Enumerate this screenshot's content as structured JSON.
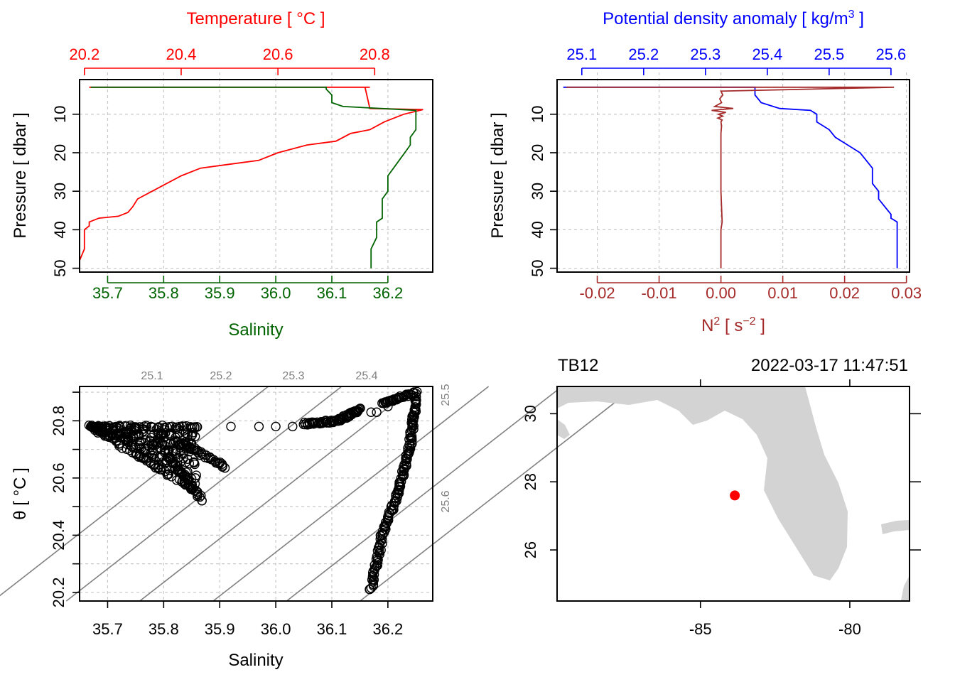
{
  "colors": {
    "temperature": "#ff0000",
    "salinity": "#006400",
    "density": "#0000ff",
    "n2": "#a52a2a",
    "isopycnal": "#808080",
    "land": "#d3d3d3",
    "station": "#ff0000"
  },
  "chart_data": [
    {
      "type": "line",
      "panel": "profile-TS",
      "title": "",
      "top_axis": {
        "label": "Temperature [ °C ]",
        "ticks": [
          "20.2",
          "20.4",
          "20.6",
          "20.8"
        ],
        "range": [
          20.19,
          20.92
        ]
      },
      "bottom_axis": {
        "label": "Salinity",
        "ticks": [
          "35.7",
          "35.8",
          "35.9",
          "36.0",
          "36.1",
          "36.2"
        ],
        "range": [
          35.65,
          36.28
        ]
      },
      "y_axis": {
        "label": "Pressure [ dbar ]",
        "ticks": [
          "10",
          "20",
          "30",
          "40",
          "50"
        ],
        "range": [
          1,
          51
        ],
        "reversed": true
      },
      "grid": true,
      "series": [
        {
          "name": "Temperature",
          "axis": "top",
          "pressure": [
            3,
            3,
            3,
            3,
            3,
            3,
            3,
            3,
            3,
            3,
            8.5,
            8.8,
            10,
            12,
            14,
            15,
            17,
            18,
            20,
            22,
            23,
            24,
            26,
            28,
            30,
            32,
            34,
            35.5,
            36.5,
            37,
            38,
            39,
            40,
            42,
            45,
            48,
            50
          ],
          "values": [
            20.21,
            20.34,
            20.5,
            20.6,
            20.7,
            20.75,
            20.78,
            20.79,
            20.78,
            20.78,
            20.79,
            20.9,
            20.86,
            20.82,
            20.79,
            20.75,
            20.72,
            20.66,
            20.6,
            20.56,
            20.5,
            20.44,
            20.4,
            20.37,
            20.34,
            20.31,
            20.3,
            20.29,
            20.27,
            20.23,
            20.21,
            20.21,
            20.2,
            20.2,
            20.2,
            20.19,
            20.19
          ]
        },
        {
          "name": "Salinity",
          "axis": "bottom",
          "pressure": [
            3,
            3,
            3,
            3,
            3,
            3.5,
            5,
            7,
            8,
            8.6,
            9,
            10,
            12,
            14,
            16,
            18,
            20,
            22,
            24,
            26,
            28,
            30,
            32,
            34,
            36,
            37,
            38,
            39,
            40,
            42,
            45,
            48,
            50
          ],
          "values": [
            35.67,
            35.9,
            36.0,
            36.08,
            36.09,
            36.09,
            36.1,
            36.1,
            36.12,
            36.2,
            36.25,
            36.25,
            36.25,
            36.25,
            36.24,
            36.24,
            36.23,
            36.22,
            36.21,
            36.2,
            36.2,
            36.2,
            36.19,
            36.19,
            36.19,
            36.19,
            36.18,
            36.18,
            36.18,
            36.18,
            36.17,
            36.17,
            36.17
          ]
        }
      ]
    },
    {
      "type": "line",
      "panel": "profile-density-N2",
      "title": "",
      "top_axis": {
        "label": "Potential density anomaly [ kg/m³ ]",
        "ticks": [
          "25.1",
          "25.2",
          "25.3",
          "25.4",
          "25.5",
          "25.6"
        ],
        "range": [
          25.06,
          25.63
        ]
      },
      "bottom_axis": {
        "label": "N² [ s⁻² ]",
        "ticks": [
          "-0.02",
          "-0.01",
          "0.00",
          "0.01",
          "0.02",
          "0.03"
        ],
        "range": [
          -0.0265,
          0.0305
        ]
      },
      "y_axis": {
        "label": "Pressure [ dbar ]",
        "ticks": [
          "10",
          "20",
          "30",
          "40",
          "50"
        ],
        "range": [
          1,
          51
        ],
        "reversed": true
      },
      "grid": true,
      "series": [
        {
          "name": "Potential density anomaly",
          "axis": "top",
          "pressure": [
            3,
            3,
            3,
            3,
            3,
            3.5,
            5,
            7,
            8.5,
            9,
            10,
            12,
            14,
            16,
            18,
            20,
            22,
            24,
            26,
            28,
            30,
            32,
            34,
            36,
            37,
            38,
            39,
            40,
            42,
            45,
            48,
            50
          ],
          "values": [
            25.07,
            25.2,
            25.3,
            25.37,
            25.38,
            25.38,
            25.38,
            25.39,
            25.42,
            25.47,
            25.48,
            25.48,
            25.5,
            25.51,
            25.53,
            25.55,
            25.56,
            25.57,
            25.57,
            25.57,
            25.58,
            25.58,
            25.59,
            25.6,
            25.6,
            25.61,
            25.61,
            25.61,
            25.61,
            25.61,
            25.61,
            25.61
          ]
        },
        {
          "name": "N²",
          "axis": "bottom",
          "pressure": [
            3,
            3,
            3,
            3,
            3,
            4,
            5,
            6,
            7,
            8,
            8.5,
            9,
            9.5,
            10,
            10.5,
            11,
            11.5,
            12,
            13,
            15,
            20,
            30,
            38,
            40,
            50
          ],
          "values": [
            -0.025,
            0.0,
            0.026,
            0.0,
            0.028,
            0.0,
            0.0003,
            -0.0002,
            0.0001,
            -0.001,
            0.002,
            -0.0015,
            0.0008,
            -0.0004,
            0.0003,
            -0.0005,
            0.0002,
            0.0,
            0.0001,
            0.0,
            0.0,
            0.0,
            0.0002,
            0.0,
            0.0
          ]
        }
      ]
    },
    {
      "type": "scatter",
      "panel": "TS-diagram",
      "title": "",
      "xlabel": "Salinity",
      "ylabel": "θ [ °C ]",
      "xlim": [
        35.65,
        36.28
      ],
      "ylim": [
        20.17,
        20.92
      ],
      "xticks": [
        "35.7",
        "35.8",
        "35.9",
        "36.0",
        "36.1",
        "36.2"
      ],
      "yticks": [
        "20.2",
        "20.4",
        "20.6",
        "20.8"
      ],
      "grid": true,
      "isopycnal_labels": [
        "25.1",
        "25.2",
        "25.3",
        "25.4",
        "25.5",
        "25.6"
      ],
      "isopycnal_intercepts_salinity_at_20_2": [
        35.515,
        35.646,
        35.777,
        35.908,
        36.039,
        36.17
      ],
      "clusters": [
        {
          "s": [
            35.67,
            35.86
          ],
          "t": [
            20.78,
            20.78
          ]
        },
        {
          "s": [
            35.67,
            35.86
          ],
          "t": [
            20.78,
            20.55
          ]
        },
        {
          "s": [
            35.8,
            35.87
          ],
          "t": [
            20.7,
            20.52
          ]
        },
        {
          "s": [
            35.82,
            35.91
          ],
          "t": [
            20.73,
            20.64
          ]
        },
        {
          "s": [
            36.05,
            36.11
          ],
          "t": [
            20.79,
            20.8
          ]
        },
        {
          "s": [
            36.11,
            36.15
          ],
          "t": [
            20.8,
            20.84
          ]
        },
        {
          "s": [
            36.19,
            36.25
          ],
          "t": [
            20.86,
            20.9
          ]
        },
        {
          "s": [
            36.25,
            36.24
          ],
          "t": [
            20.88,
            20.72
          ]
        },
        {
          "s": [
            36.24,
            36.22
          ],
          "t": [
            20.72,
            20.56
          ]
        },
        {
          "s": [
            36.22,
            36.19
          ],
          "t": [
            20.56,
            20.4
          ]
        },
        {
          "s": [
            36.19,
            36.17
          ],
          "t": [
            20.4,
            20.21
          ]
        }
      ],
      "points": [
        {
          "s": 35.92,
          "t": 20.78
        },
        {
          "s": 35.97,
          "t": 20.78
        },
        {
          "s": 36.0,
          "t": 20.78
        },
        {
          "s": 36.03,
          "t": 20.78
        },
        {
          "s": 36.17,
          "t": 20.83
        },
        {
          "s": 36.18,
          "t": 20.83
        },
        {
          "s": 36.2,
          "t": 20.85
        }
      ]
    }
  ],
  "map": {
    "station_name": "TB12",
    "datetime": "2022-03-17 11:47:51",
    "lon_ticks": [
      "-85",
      "-80"
    ],
    "lat_ticks": [
      "26",
      "28",
      "30"
    ],
    "lon_range": [
      -89.8,
      -78.0
    ],
    "lat_range": [
      24.5,
      30.8
    ],
    "station": {
      "lon": -83.85,
      "lat": 27.6
    }
  }
}
